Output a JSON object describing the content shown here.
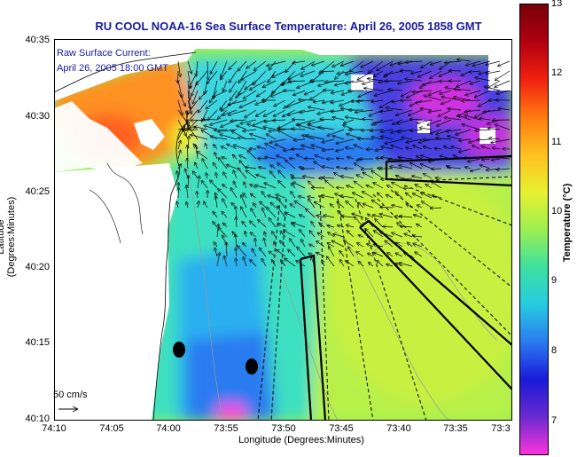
{
  "title": "RU COOL  NOAA-16  Sea Surface Temperature:  April 26, 2005 1858 GMT",
  "inset": {
    "line1": "Raw Surface Current:",
    "line2": "April 26, 2005 18:00 GMT"
  },
  "axes": {
    "xlabel": "Longitude (Degrees:Minutes)",
    "ylabel": "Latitude (Degrees:Minutes)",
    "xticks": [
      "74:10",
      "74:05",
      "74:00",
      "73:55",
      "73:50",
      "73:45",
      "73:40",
      "73:35",
      "73:3"
    ],
    "yticks": [
      "40:35",
      "40:30",
      "40:25",
      "40:20",
      "40:15",
      "40:10"
    ]
  },
  "colorbar": {
    "title": "Temperature (°C)",
    "ticks": [
      "13",
      "12",
      "11",
      "10",
      "9",
      "8",
      "7"
    ],
    "colors": [
      "#ff33dd",
      "#6a2ad0",
      "#1a1ad8",
      "#2a7af0",
      "#26cce0",
      "#3ee0a0",
      "#9cf050",
      "#e8f030",
      "#ffc020",
      "#ff7a10",
      "#f02010",
      "#b00010",
      "#780008"
    ]
  },
  "scale": {
    "label": "50 cm/s"
  },
  "chart_data": {
    "type": "heatmap",
    "title": "RU COOL  NOAA-16  Sea Surface Temperature:  April 26, 2005 1858 GMT",
    "xlabel": "Longitude (Degrees:Minutes)",
    "ylabel": "Latitude (Degrees:Minutes)",
    "xlim": [
      "74:10",
      "73:3"
    ],
    "ylim": [
      "40:10",
      "40:35"
    ],
    "colorbar_range": [
      6.5,
      13
    ]
  }
}
